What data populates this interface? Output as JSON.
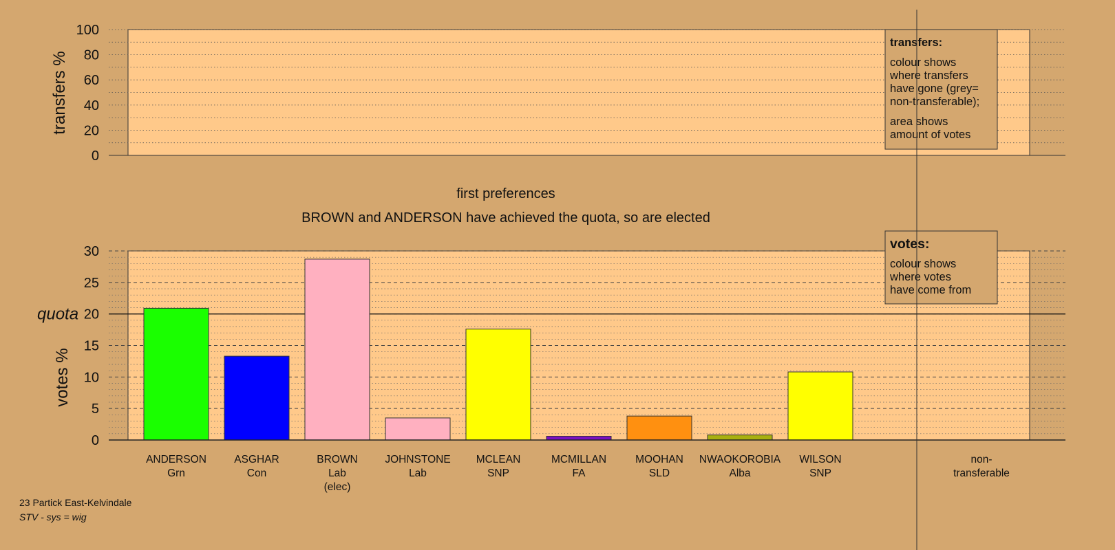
{
  "chart_data": [
    {
      "type": "bar",
      "panel": "transfers",
      "ylabel": "transfers %",
      "ylim": [
        0,
        100
      ],
      "yticks": [
        0,
        20,
        40,
        60,
        80,
        100
      ],
      "categories": [
        "ANDERSON",
        "ASGHAR",
        "BROWN",
        "JOHNSTONE",
        "MCLEAN",
        "MCMILLAN",
        "MOOHAN",
        "NWAOKOROBIA",
        "WILSON",
        "non-transferable"
      ],
      "values": [
        0,
        0,
        0,
        0,
        0,
        0,
        0,
        0,
        0,
        0
      ],
      "legend": {
        "title": "transfers:",
        "lines1": [
          "colour shows",
          "where transfers",
          "have gone (grey=",
          "non-transferable);"
        ],
        "lines2": [
          "area shows",
          "amount of votes"
        ]
      }
    },
    {
      "type": "bar",
      "panel": "votes",
      "title": "first preferences",
      "subtitle": "BROWN and ANDERSON have achieved the quota, so are elected",
      "ylabel": "votes %",
      "ylim": [
        0,
        30
      ],
      "yticks": [
        0,
        5,
        10,
        15,
        20,
        25,
        30
      ],
      "quota": 20,
      "quota_label": "quota",
      "candidates": [
        {
          "name": "ANDERSON",
          "party": "Grn",
          "note": "",
          "value": 20.9,
          "color": "#1aff00"
        },
        {
          "name": "ASGHAR",
          "party": "Con",
          "note": "",
          "value": 13.3,
          "color": "#0000ff"
        },
        {
          "name": "BROWN",
          "party": "Lab",
          "note": "(elec)",
          "value": 28.7,
          "color": "#ffb0c0"
        },
        {
          "name": "JOHNSTONE",
          "party": "Lab",
          "note": "",
          "value": 3.5,
          "color": "#ffb0c0"
        },
        {
          "name": "MCLEAN",
          "party": "SNP",
          "note": "",
          "value": 17.6,
          "color": "#ffff00"
        },
        {
          "name": "MCMILLAN",
          "party": "FA",
          "note": "",
          "value": 0.6,
          "color": "#7a10c0"
        },
        {
          "name": "MOOHAN",
          "party": "SLD",
          "note": "",
          "value": 3.8,
          "color": "#ff9010"
        },
        {
          "name": "NWAOKOROBIA",
          "party": "Alba",
          "note": "",
          "value": 0.8,
          "color": "#a8b010"
        },
        {
          "name": "WILSON",
          "party": "SNP",
          "note": "",
          "value": 10.8,
          "color": "#ffff00"
        }
      ],
      "nontransferable_label": [
        "non-",
        "transferable"
      ],
      "legend": {
        "title": "votes:",
        "lines": [
          "colour shows",
          "where votes",
          "have come from"
        ]
      }
    }
  ],
  "footer": {
    "ward": "23 Partick East-Kelvindale",
    "system": "STV - sys = wig"
  },
  "colors": {
    "background": "#d4a76f",
    "plot_area": "#ffc98a",
    "legend_box": "#d4a76f"
  }
}
